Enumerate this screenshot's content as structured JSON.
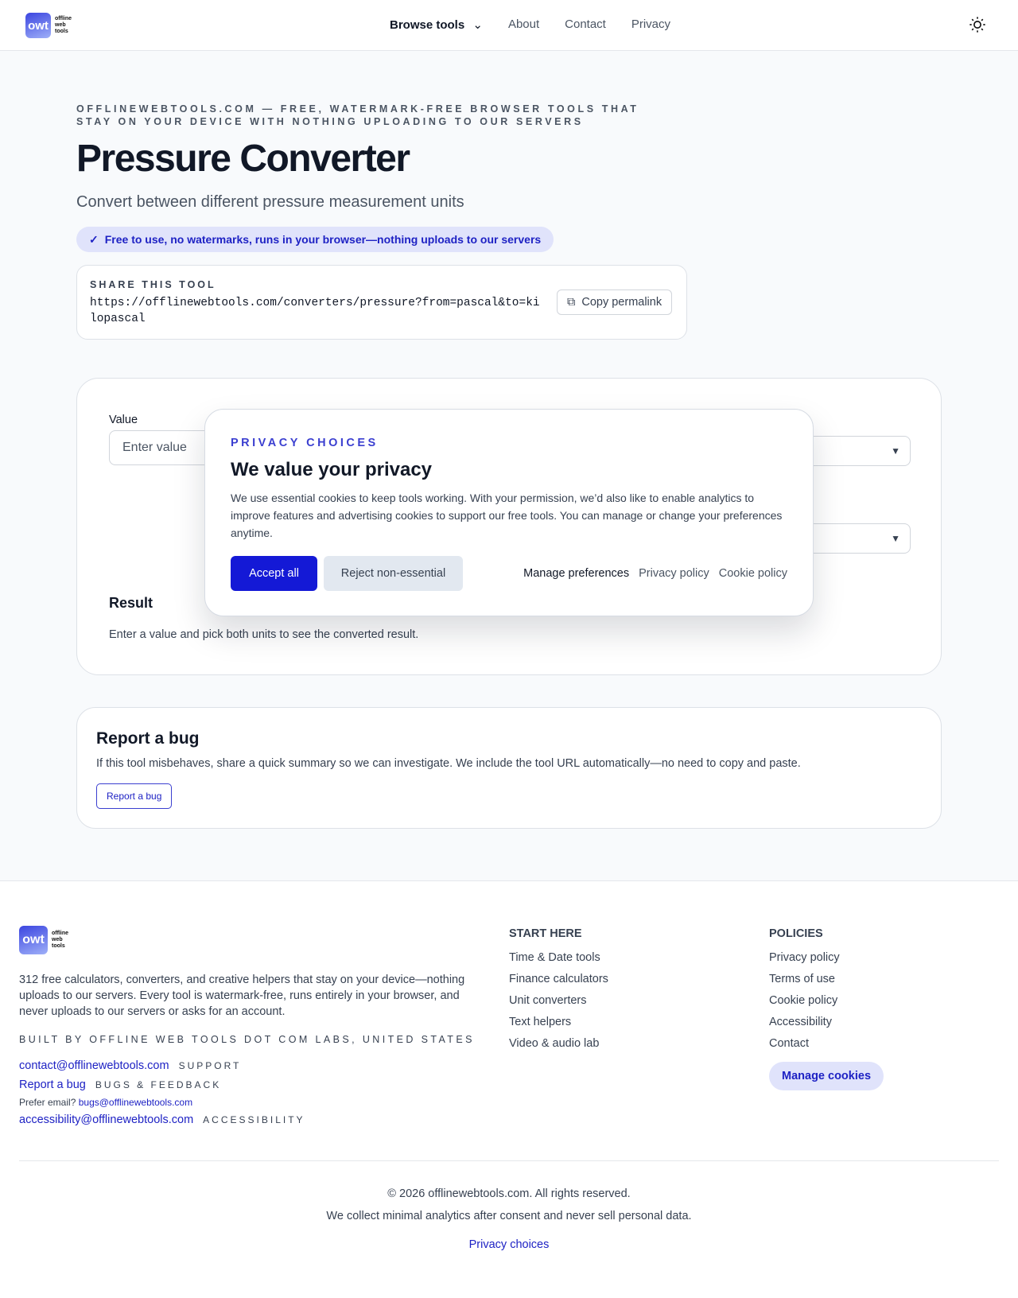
{
  "nav": {
    "logo_mark": "owt",
    "logo_words": [
      "offline",
      "web",
      "tools"
    ],
    "browse": "Browse tools",
    "links": [
      "About",
      "Contact",
      "Privacy"
    ],
    "theme_icon": "sun-icon"
  },
  "hero": {
    "eyebrow": "OFFLINEWEBTOOLS.COM — FREE, WATERMARK-FREE BROWSER TOOLS THAT STAY ON YOUR DEVICE WITH NOTHING UPLOADING TO OUR SERVERS",
    "title": "Pressure Converter",
    "subtitle": "Convert between different pressure measurement units",
    "pill": "Free to use, no watermarks, runs in your browser—nothing uploads to our servers"
  },
  "share": {
    "label": "SHARE THIS TOOL",
    "url": "https://offlinewebtools.com/converters/pressure?from=pascal&to=kilopascal",
    "copy": "Copy permalink"
  },
  "converter": {
    "value_label": "Value",
    "value_placeholder": "Enter value",
    "result_label": "Result",
    "result_text": "Enter a value and pick both units to see the converted result."
  },
  "modal": {
    "eyebrow": "PRIVACY CHOICES",
    "title": "We value your privacy",
    "body": "We use essential cookies to keep tools working. With your permission, we’d also like to enable analytics to improve features and advertising cookies to support our free tools. You can manage or change your preferences anytime.",
    "accept": "Accept all",
    "reject": "Reject non-essential",
    "links": [
      "Manage preferences",
      "Privacy policy",
      "Cookie policy"
    ]
  },
  "bug": {
    "title": "Report a bug",
    "text": "If this tool misbehaves, share a quick summary so we can investigate. We include the tool URL automatically—no need to copy and paste.",
    "button": "Report a bug"
  },
  "footer": {
    "desc": "312 free calculators, converters, and creative helpers that stay on your device—nothing uploads to our servers. Every tool is watermark-free, runs entirely in your browser, and never uploads to our servers or asks for an account.",
    "built": "BUILT BY OFFLINE WEB TOOLS DOT COM LABS, UNITED STATES",
    "contact": {
      "link": "contact@offlinewebtools.com",
      "tag": "SUPPORT"
    },
    "report": {
      "link": "Report a bug",
      "tag": "BUGS & FEEDBACK"
    },
    "prefer": {
      "text": "Prefer email?",
      "link": "bugs@offlinewebtools.com"
    },
    "access": {
      "link": "accessibility@offlinewebtools.com",
      "tag": "ACCESSIBILITY"
    },
    "start": {
      "heading": "START HERE",
      "items": [
        "Time & Date tools",
        "Finance calculators",
        "Unit converters",
        "Text helpers",
        "Video & audio lab"
      ]
    },
    "policies": {
      "heading": "POLICIES",
      "items": [
        "Privacy policy",
        "Terms of use",
        "Cookie policy",
        "Accessibility",
        "Contact"
      ],
      "manage": "Manage cookies"
    },
    "copyright": "© 2026 offlinewebtools.com. All rights reserved.",
    "analytics": "We collect minimal analytics after consent and never sell personal data.",
    "privacy_choices": "Privacy choices"
  }
}
